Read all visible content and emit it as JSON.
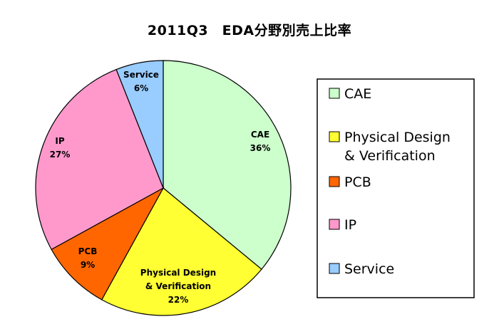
{
  "chart_data": {
    "type": "pie",
    "title": "2011Q3　EDA分野別売上比率",
    "slices": [
      {
        "name": "CAE",
        "label_lines": [
          "CAE",
          "36%"
        ],
        "legend_lines": [
          "CAE"
        ],
        "value": 36,
        "color": "#ccffcc"
      },
      {
        "name": "Physical Design & Verification",
        "label_lines": [
          "Physical Design",
          "& Verification",
          "22%"
        ],
        "legend_lines": [
          "Physical Design",
          "& Verification"
        ],
        "value": 22,
        "color": "#ffff33"
      },
      {
        "name": "PCB",
        "label_lines": [
          "PCB",
          "9%"
        ],
        "legend_lines": [
          "PCB"
        ],
        "value": 9,
        "color": "#ff6600"
      },
      {
        "name": "IP",
        "label_lines": [
          "IP",
          "27%"
        ],
        "legend_lines": [
          "IP"
        ],
        "value": 27,
        "color": "#ff99cc"
      },
      {
        "name": "Service",
        "label_lines": [
          "Service",
          "6%"
        ],
        "legend_lines": [
          "Service"
        ],
        "value": 6,
        "color": "#99ccff"
      }
    ],
    "legend_position": "right",
    "start_angle": "top",
    "direction": "clockwise"
  }
}
